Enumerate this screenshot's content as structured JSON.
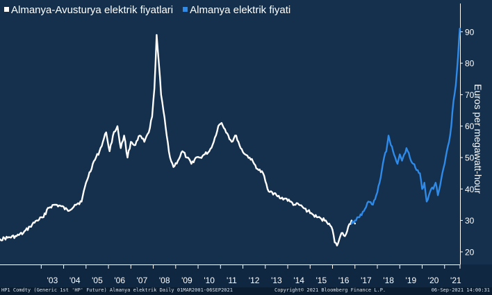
{
  "chart_data": {
    "type": "line",
    "xlabel": "",
    "ylabel": "Euros per megawatt-hour",
    "xlim": [
      2001.16,
      2021.69
    ],
    "ylim": [
      16,
      99
    ],
    "ytick_values": [
      20,
      30,
      40,
      50,
      60,
      70,
      80,
      90
    ],
    "yticks": [
      "20",
      "30",
      "40",
      "50",
      "60",
      "70",
      "80",
      "90"
    ],
    "xtick_values": [
      2003,
      2004,
      2005,
      2006,
      2007,
      2008,
      2009,
      2010,
      2011,
      2012,
      2013,
      2014,
      2015,
      2016,
      2017,
      2018,
      2019,
      2020,
      2021
    ],
    "xticks": [
      "'03",
      "'04",
      "'05",
      "'06",
      "'07",
      "'08",
      "'09",
      "'10",
      "'11",
      "'12",
      "'13",
      "'14",
      "'15",
      "'16",
      "'17",
      "'18",
      "'19",
      "'20",
      "'21"
    ],
    "grid": false,
    "legend_position": "top-left",
    "series": [
      {
        "name": "Almanya-Avusturya elektrik fiyatlari",
        "color": "#ffffff",
        "x": [
          2001.17,
          2001.5,
          2001.9,
          2002.2,
          2002.5,
          2002.8,
          2003.1,
          2003.3,
          2003.6,
          2003.9,
          2004.2,
          2004.5,
          2004.8,
          2005.0,
          2005.3,
          2005.6,
          2005.9,
          2006.05,
          2006.2,
          2006.4,
          2006.55,
          2006.7,
          2006.85,
          2007.0,
          2007.2,
          2007.4,
          2007.6,
          2007.8,
          2007.95,
          2008.05,
          2008.15,
          2008.25,
          2008.35,
          2008.45,
          2008.6,
          2008.75,
          2008.9,
          2009.1,
          2009.3,
          2009.5,
          2009.7,
          2009.9,
          2010.1,
          2010.3,
          2010.5,
          2010.7,
          2010.9,
          2011.05,
          2011.2,
          2011.35,
          2011.5,
          2011.7,
          2011.9,
          2012.1,
          2012.3,
          2012.5,
          2012.7,
          2012.9,
          2013.1,
          2013.3,
          2013.5,
          2013.7,
          2013.9,
          2014.1,
          2014.3,
          2014.5,
          2014.7,
          2014.9,
          2015.1,
          2015.3,
          2015.5,
          2015.7,
          2015.85,
          2016.0,
          2016.1,
          2016.2,
          2016.3,
          2016.4,
          2016.55,
          2016.7,
          2016.85,
          2017.0
        ],
        "y": [
          24,
          24.5,
          25,
          26,
          28,
          30,
          31,
          34,
          35,
          34.5,
          33,
          35,
          36,
          42,
          48,
          52,
          58,
          52,
          57,
          60,
          53,
          57,
          50,
          55,
          54,
          57,
          55,
          58,
          63,
          72,
          89,
          80,
          70,
          65,
          57,
          50,
          47,
          49,
          52,
          50,
          48,
          50,
          50,
          51,
          52,
          55,
          60,
          61,
          59,
          57,
          55,
          57,
          53,
          51,
          50,
          48,
          46,
          45,
          40,
          39,
          38,
          37,
          37,
          36,
          35,
          35,
          34,
          33,
          32,
          31,
          30.5,
          30,
          29,
          27,
          23,
          22,
          24,
          26,
          25,
          28,
          30,
          29
        ]
      },
      {
        "name": "Almanya elektrik fiyati",
        "color": "#2f8ae8",
        "x": [
          2016.85,
          2017.0,
          2017.2,
          2017.4,
          2017.6,
          2017.8,
          2017.95,
          2018.1,
          2018.2,
          2018.3,
          2018.4,
          2018.5,
          2018.6,
          2018.7,
          2018.8,
          2018.9,
          2019.0,
          2019.1,
          2019.2,
          2019.3,
          2019.45,
          2019.6,
          2019.75,
          2019.9,
          2020.0,
          2020.1,
          2020.2,
          2020.3,
          2020.4,
          2020.5,
          2020.6,
          2020.7,
          2020.8,
          2020.9,
          2021.0,
          2021.1,
          2021.2,
          2021.3,
          2021.4,
          2021.5,
          2021.6,
          2021.68
        ],
        "y": [
          29,
          30,
          31,
          33,
          36,
          35,
          38,
          42,
          46,
          50,
          52,
          57,
          54,
          52,
          50,
          48,
          51,
          49,
          51,
          53,
          50,
          48,
          46,
          45,
          40,
          42,
          36,
          38,
          40,
          40,
          42,
          38,
          41,
          45,
          48,
          52,
          55,
          60,
          68,
          73,
          82,
          91
        ]
      }
    ]
  },
  "footer": {
    "left": "HP1 Comdty (Generic 1st 'HP' Future) Almanya elektrik  Daily 01MAR2001-06SEP2021",
    "center": "Copyright© 2021 Bloomberg Finance L.P.",
    "right": "06-Sep-2021 14:00:31"
  }
}
